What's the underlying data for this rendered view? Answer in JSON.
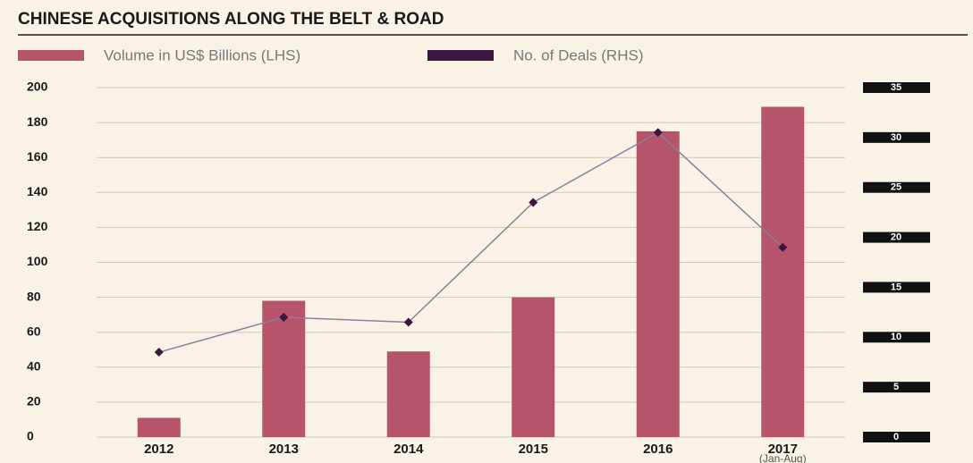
{
  "chart_data": {
    "type": "bar-line",
    "title": "CHINESE ACQUISITIONS ALONG THE BELT & ROAD",
    "categories": [
      "2012",
      "2013",
      "2014",
      "2015",
      "2016",
      "2017"
    ],
    "annotation": "(Jan-Aug)",
    "series": [
      {
        "name": "Volume in US$ Billions (LHS)",
        "type": "bar",
        "color": "#b5546a",
        "values": [
          11,
          78,
          49,
          80,
          175,
          189
        ]
      },
      {
        "name": "No. of Deals (RHS)",
        "type": "line",
        "axis": "y2",
        "color": "#3b1640",
        "line_color": "#8d7f99",
        "values": [
          8.5,
          12,
          11.5,
          23.5,
          30.5,
          19
        ]
      }
    ],
    "ylim": [
      0,
      200
    ],
    "yticks": [
      0,
      20,
      40,
      60,
      80,
      100,
      120,
      140,
      160,
      180,
      200
    ],
    "y2lim": [
      0,
      35
    ],
    "y2ticks": [
      0,
      5,
      10,
      15,
      20,
      25,
      30,
      35
    ],
    "grid": true
  }
}
